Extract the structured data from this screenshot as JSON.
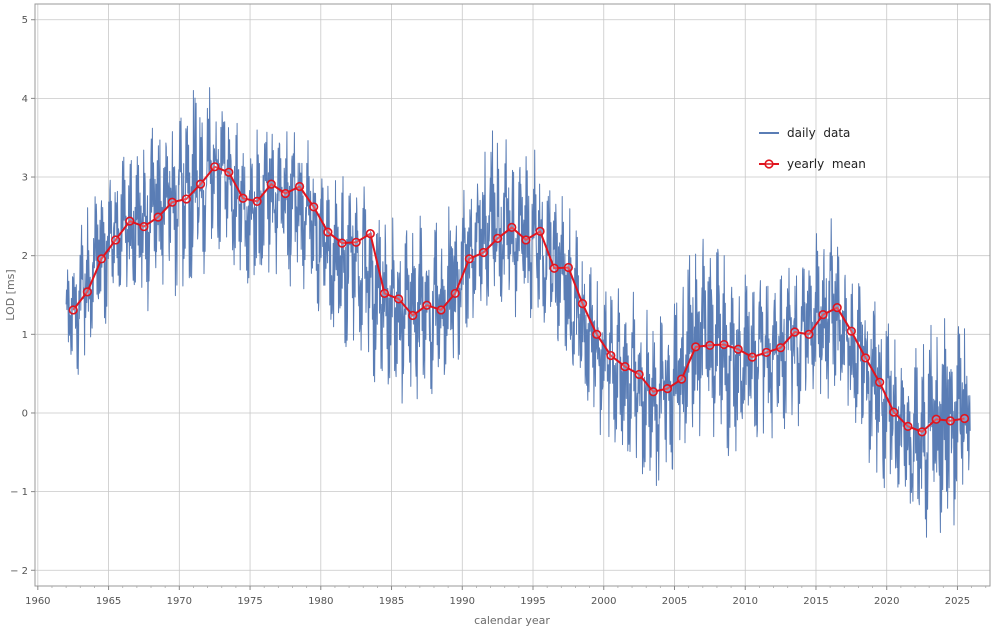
{
  "chart_data": {
    "type": "line",
    "title": "",
    "xlabel": "calendar year",
    "ylabel": "LOD [ms]",
    "xlim": [
      1959.8,
      2027.3
    ],
    "ylim": [
      -2.2,
      5.2
    ],
    "x_ticks": [
      1960,
      1965,
      1970,
      1975,
      1980,
      1985,
      1990,
      1995,
      2000,
      2005,
      2010,
      2015,
      2020,
      2025
    ],
    "y_ticks": [
      -2,
      -1,
      0,
      1,
      2,
      3,
      4,
      5
    ],
    "x_tick_labels": [
      "1960",
      "1965",
      "1970",
      "1975",
      "1980",
      "1985",
      "1990",
      "1995",
      "2000",
      "2005",
      "2010",
      "2015",
      "2020",
      "2025"
    ],
    "y_tick_labels": [
      "− 2",
      "− 1",
      "0",
      "1",
      "2",
      "3",
      "4",
      "5"
    ],
    "grid": true,
    "legend_position": "top-right",
    "colors": {
      "daily": "#5a7db5",
      "yearly": "#e0141e",
      "grid": "#c8c8c8",
      "frame": "#9a9a9a"
    },
    "series": [
      {
        "name": "daily  data",
        "style": "line",
        "x_range": [
          1962.0,
          2025.9
        ],
        "description_upper": [
          {
            "x": 1962.0,
            "y": 1.8
          },
          {
            "x": 1963.0,
            "y": 2.4
          },
          {
            "x": 1964.0,
            "y": 2.9
          },
          {
            "x": 1965.0,
            "y": 3.0
          },
          {
            "x": 1966.0,
            "y": 3.4
          },
          {
            "x": 1967.0,
            "y": 3.4
          },
          {
            "x": 1968.0,
            "y": 3.6
          },
          {
            "x": 1969.0,
            "y": 3.8
          },
          {
            "x": 1970.0,
            "y": 4.0
          },
          {
            "x": 1971.0,
            "y": 4.1
          },
          {
            "x": 1972.0,
            "y": 4.35
          },
          {
            "x": 1973.0,
            "y": 4.1
          },
          {
            "x": 1974.0,
            "y": 3.7
          },
          {
            "x": 1975.0,
            "y": 3.5
          },
          {
            "x": 1976.0,
            "y": 3.9
          },
          {
            "x": 1977.0,
            "y": 3.8
          },
          {
            "x": 1978.0,
            "y": 3.7
          },
          {
            "x": 1979.0,
            "y": 3.5
          },
          {
            "x": 1980.0,
            "y": 3.1
          },
          {
            "x": 1981.0,
            "y": 3.0
          },
          {
            "x": 1982.0,
            "y": 3.1
          },
          {
            "x": 1983.0,
            "y": 3.1
          },
          {
            "x": 1984.0,
            "y": 2.6
          },
          {
            "x": 1985.0,
            "y": 2.5
          },
          {
            "x": 1986.0,
            "y": 2.4
          },
          {
            "x": 1987.0,
            "y": 2.5
          },
          {
            "x": 1988.0,
            "y": 2.6
          },
          {
            "x": 1989.0,
            "y": 2.6
          },
          {
            "x": 1990.0,
            "y": 3.0
          },
          {
            "x": 1991.0,
            "y": 3.2
          },
          {
            "x": 1992.0,
            "y": 3.6
          },
          {
            "x": 1993.0,
            "y": 3.5
          },
          {
            "x": 1994.0,
            "y": 3.3
          },
          {
            "x": 1995.0,
            "y": 3.4
          },
          {
            "x": 1996.0,
            "y": 3.1
          },
          {
            "x": 1997.0,
            "y": 2.9
          },
          {
            "x": 1998.0,
            "y": 2.6
          },
          {
            "x": 1999.0,
            "y": 1.9
          },
          {
            "x": 2000.0,
            "y": 1.7
          },
          {
            "x": 2001.0,
            "y": 1.6
          },
          {
            "x": 2002.0,
            "y": 1.6
          },
          {
            "x": 2003.0,
            "y": 1.3
          },
          {
            "x": 2004.0,
            "y": 1.4
          },
          {
            "x": 2005.0,
            "y": 1.5
          },
          {
            "x": 2006.0,
            "y": 2.2
          },
          {
            "x": 2007.0,
            "y": 2.3
          },
          {
            "x": 2008.0,
            "y": 2.2
          },
          {
            "x": 2009.0,
            "y": 1.9
          },
          {
            "x": 2010.0,
            "y": 1.8
          },
          {
            "x": 2011.0,
            "y": 1.9
          },
          {
            "x": 2012.0,
            "y": 1.9
          },
          {
            "x": 2013.0,
            "y": 2.1
          },
          {
            "x": 2014.0,
            "y": 2.1
          },
          {
            "x": 2015.0,
            "y": 2.4
          },
          {
            "x": 2016.0,
            "y": 2.5
          },
          {
            "x": 2017.0,
            "y": 2.1
          },
          {
            "x": 2018.0,
            "y": 1.7
          },
          {
            "x": 2019.0,
            "y": 1.5
          },
          {
            "x": 2020.0,
            "y": 1.2
          },
          {
            "x": 2021.0,
            "y": 0.9
          },
          {
            "x": 2022.0,
            "y": 0.8
          },
          {
            "x": 2023.0,
            "y": 1.1
          },
          {
            "x": 2024.0,
            "y": 1.2
          },
          {
            "x": 2025.0,
            "y": 1.2
          },
          {
            "x": 2025.9,
            "y": 1.1
          }
        ],
        "description_lower": [
          {
            "x": 1962.0,
            "y": 0.4
          },
          {
            "x": 1963.0,
            "y": 0.5
          },
          {
            "x": 1964.0,
            "y": 0.9
          },
          {
            "x": 1965.0,
            "y": 1.2
          },
          {
            "x": 1966.0,
            "y": 1.5
          },
          {
            "x": 1967.0,
            "y": 1.3
          },
          {
            "x": 1968.0,
            "y": 1.3
          },
          {
            "x": 1969.0,
            "y": 1.7
          },
          {
            "x": 1970.0,
            "y": 1.4
          },
          {
            "x": 1971.0,
            "y": 1.4
          },
          {
            "x": 1972.0,
            "y": 1.9
          },
          {
            "x": 1973.0,
            "y": 2.1
          },
          {
            "x": 1974.0,
            "y": 1.7
          },
          {
            "x": 1975.0,
            "y": 1.5
          },
          {
            "x": 1976.0,
            "y": 1.6
          },
          {
            "x": 1977.0,
            "y": 1.8
          },
          {
            "x": 1978.0,
            "y": 1.5
          },
          {
            "x": 1979.0,
            "y": 1.6
          },
          {
            "x": 1980.0,
            "y": 1.2
          },
          {
            "x": 1981.0,
            "y": 0.9
          },
          {
            "x": 1982.0,
            "y": 0.8
          },
          {
            "x": 1983.0,
            "y": 0.8
          },
          {
            "x": 1984.0,
            "y": 0.3
          },
          {
            "x": 1985.0,
            "y": 0.2
          },
          {
            "x": 1986.0,
            "y": 0.1
          },
          {
            "x": 1987.0,
            "y": 0.2
          },
          {
            "x": 1988.0,
            "y": -0.1
          },
          {
            "x": 1989.0,
            "y": 0.2
          },
          {
            "x": 1990.0,
            "y": 0.8
          },
          {
            "x": 1991.0,
            "y": 1.0
          },
          {
            "x": 1992.0,
            "y": 1.2
          },
          {
            "x": 1993.0,
            "y": 1.3
          },
          {
            "x": 1994.0,
            "y": 1.2
          },
          {
            "x": 1995.0,
            "y": 1.2
          },
          {
            "x": 1996.0,
            "y": 0.9
          },
          {
            "x": 1997.0,
            "y": 0.6
          },
          {
            "x": 1998.0,
            "y": 0.1
          },
          {
            "x": 1999.0,
            "y": -0.2
          },
          {
            "x": 2000.0,
            "y": -0.3
          },
          {
            "x": 2001.0,
            "y": -0.6
          },
          {
            "x": 2002.0,
            "y": -0.7
          },
          {
            "x": 2003.0,
            "y": -0.9
          },
          {
            "x": 2004.0,
            "y": -1.0
          },
          {
            "x": 2005.0,
            "y": -0.9
          },
          {
            "x": 2006.0,
            "y": -0.5
          },
          {
            "x": 2007.0,
            "y": -0.3
          },
          {
            "x": 2008.0,
            "y": -0.3
          },
          {
            "x": 2009.0,
            "y": -0.6
          },
          {
            "x": 2010.0,
            "y": -0.6
          },
          {
            "x": 2011.0,
            "y": -0.4
          },
          {
            "x": 2012.0,
            "y": -0.4
          },
          {
            "x": 2013.0,
            "y": -0.2
          },
          {
            "x": 2014.0,
            "y": -0.2
          },
          {
            "x": 2015.0,
            "y": 0.1
          },
          {
            "x": 2016.0,
            "y": 0.2
          },
          {
            "x": 2017.0,
            "y": -0.1
          },
          {
            "x": 2018.0,
            "y": -0.4
          },
          {
            "x": 2019.0,
            "y": -0.7
          },
          {
            "x": 2020.0,
            "y": -1.0
          },
          {
            "x": 2021.0,
            "y": -1.4
          },
          {
            "x": 2022.0,
            "y": -1.5
          },
          {
            "x": 2023.0,
            "y": -1.6
          },
          {
            "x": 2024.0,
            "y": -1.5
          },
          {
            "x": 2025.0,
            "y": -1.4
          },
          {
            "x": 2025.9,
            "y": -0.8
          }
        ]
      },
      {
        "name": "yearly  mean",
        "style": "line+markers",
        "x": [
          1962.5,
          1963.5,
          1964.5,
          1965.5,
          1966.5,
          1967.5,
          1968.5,
          1969.5,
          1970.5,
          1971.5,
          1972.5,
          1973.5,
          1974.5,
          1975.5,
          1976.5,
          1977.5,
          1978.5,
          1979.5,
          1980.5,
          1981.5,
          1982.5,
          1983.5,
          1984.5,
          1985.5,
          1986.5,
          1987.5,
          1988.5,
          1989.5,
          1990.5,
          1991.5,
          1992.5,
          1993.5,
          1994.5,
          1995.5,
          1996.5,
          1997.5,
          1998.5,
          1999.5,
          2000.5,
          2001.5,
          2002.5,
          2003.5,
          2004.5,
          2005.5,
          2006.5,
          2007.5,
          2008.5,
          2009.5,
          2010.5,
          2011.5,
          2012.5,
          2013.5,
          2014.5,
          2015.5,
          2016.5,
          2017.5,
          2018.5,
          2019.5,
          2020.5,
          2021.5,
          2022.5,
          2023.5,
          2024.5,
          2025.5
        ],
        "values": [
          1.31,
          1.54,
          1.96,
          2.2,
          2.44,
          2.37,
          2.49,
          2.68,
          2.72,
          2.91,
          3.13,
          3.06,
          2.73,
          2.69,
          2.91,
          2.79,
          2.88,
          2.62,
          2.3,
          2.16,
          2.17,
          2.28,
          1.52,
          1.45,
          1.24,
          1.37,
          1.31,
          1.52,
          1.96,
          2.04,
          2.22,
          2.36,
          2.2,
          2.31,
          1.84,
          1.85,
          1.39,
          1.0,
          0.73,
          0.59,
          0.49,
          0.27,
          0.31,
          0.43,
          0.84,
          0.86,
          0.87,
          0.81,
          0.71,
          0.77,
          0.83,
          1.03,
          1.0,
          1.25,
          1.34,
          1.04,
          0.7,
          0.39,
          0.01,
          -0.17,
          -0.24,
          -0.08,
          -0.1,
          -0.07
        ]
      }
    ]
  }
}
